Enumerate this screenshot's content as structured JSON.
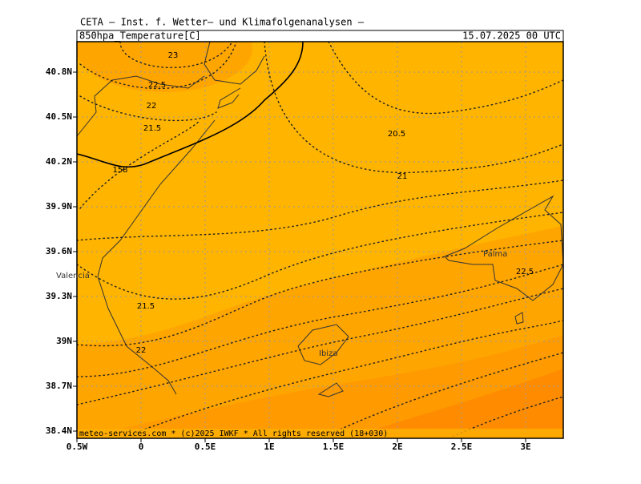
{
  "header": {
    "source": "CETA — Inst. f. Wetter— und Klimafolgenanalysen —",
    "field": "850hpa_Temperature[C]",
    "valid": "15.07.2025 00 UTC"
  },
  "axes": {
    "lon_ticks": [
      {
        "value": -0.5,
        "label": "0.5W"
      },
      0,
      {
        "value": 0.5,
        "label": "0.5E"
      },
      {
        "value": 1,
        "label": "1E"
      },
      {
        "value": 1.5,
        "label": "1.5E"
      },
      {
        "value": 2,
        "label": "2E"
      },
      {
        "value": 2.5,
        "label": "2.5E"
      },
      {
        "value": 3,
        "label": "3E"
      }
    ],
    "lat_ticks": [
      {
        "value": 40.8,
        "label": "40.8N"
      },
      {
        "value": 40.5,
        "label": "40.5N"
      },
      {
        "value": 40.2,
        "label": "40.2N"
      },
      {
        "value": 39.9,
        "label": "39.9N"
      },
      {
        "value": 39.6,
        "label": "39.6N"
      },
      {
        "value": 39.3,
        "label": "39.3N"
      },
      {
        "value": 39,
        "label": "39N"
      },
      {
        "value": 38.7,
        "label": "38.7N"
      },
      {
        "value": 38.4,
        "label": "38.4N"
      }
    ]
  },
  "contour_labels": [
    "23",
    "22.5",
    "22",
    "21.5",
    "158",
    "20.5",
    "21",
    "21.5",
    "22",
    "22.5"
  ],
  "places": [
    "Valencia",
    "Ibiza",
    "Palma"
  ],
  "footer": "meteo-services.com * (c)2025 IWKF * All rights reserved (18+030)"
}
